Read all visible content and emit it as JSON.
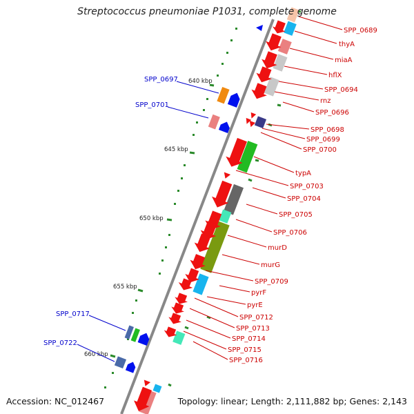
{
  "title": "Streptococcus pneumoniae P1031, complete genome",
  "footer": {
    "accession": "Accession: NC_012467",
    "topology": "Topology: linear; Length: 2,111,882 bp; Genes: 2,143"
  },
  "ruler": {
    "ticks": [
      "640 kbp",
      "645 kbp",
      "650 kbp",
      "655 kbp",
      "660 kbp"
    ]
  },
  "colors": {
    "forward_gene": "#ee1111",
    "reverse_gene": "#0011ee",
    "axis": "#888888",
    "ruler_dots": "#2a8a2a",
    "right_label": "#cc0000",
    "left_label": "#0000cc"
  },
  "right_labels": [
    "SPP_0689",
    "thyA",
    "miaA",
    "hflX",
    "SPP_0694",
    "rnz",
    "SPP_0696",
    "SPP_0698",
    "SPP_0699",
    "SPP_0700",
    "typA",
    "SPP_0703",
    "SPP_0704",
    "SPP_0705",
    "SPP_0706",
    "murD",
    "murG",
    "SPP_0709",
    "pyrF",
    "pyrE",
    "SPP_0712",
    "SPP_0713",
    "SPP_0714",
    "SPP_0715",
    "SPP_0716"
  ],
  "left_labels": [
    "SPP_0697",
    "SPP_0701",
    "SPP_0717",
    "SPP_0722"
  ]
}
